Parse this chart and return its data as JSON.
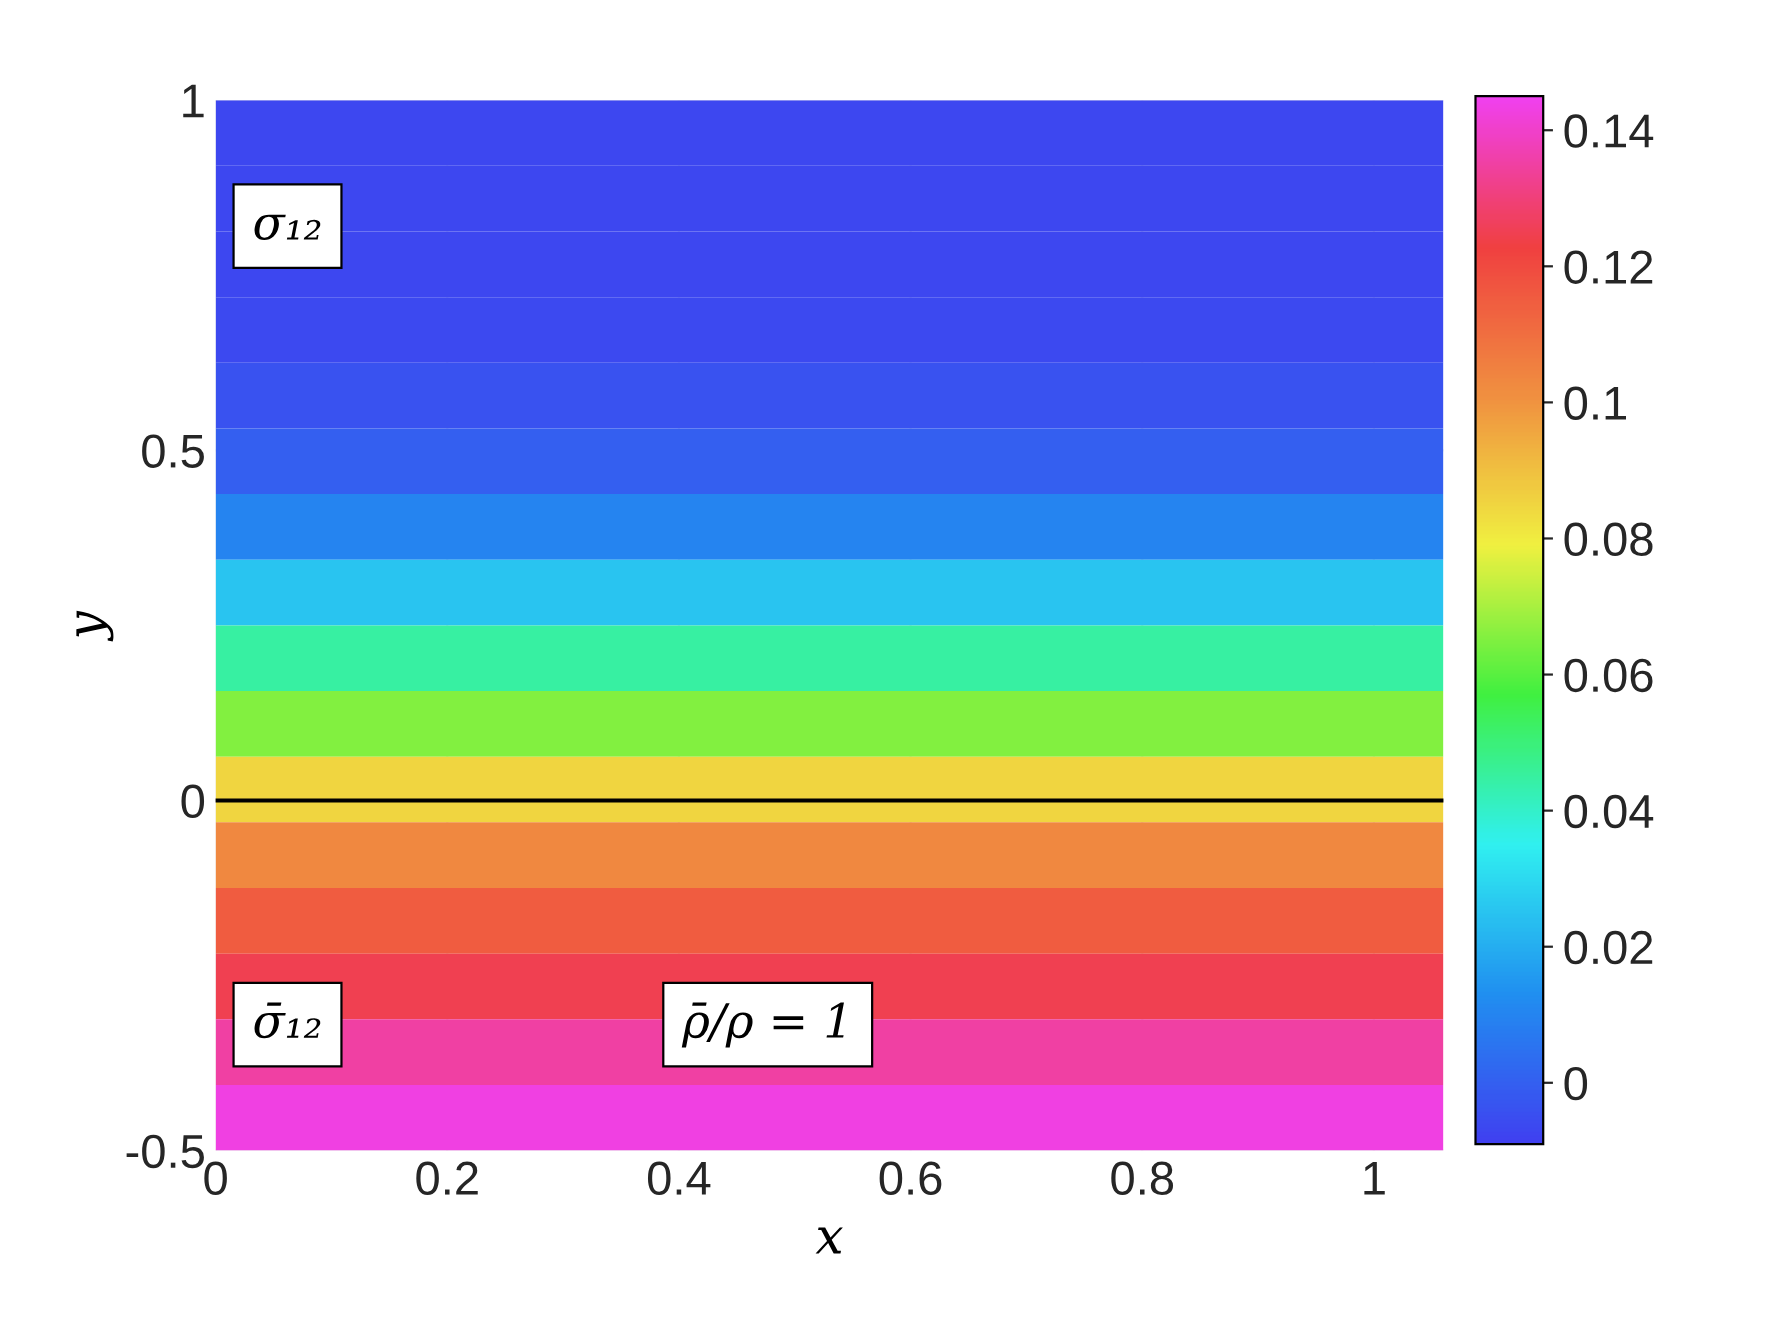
{
  "chart_data": {
    "type": "heatmap",
    "xlabel": "x",
    "ylabel": "y",
    "cells": [
      [
        -0.007
      ],
      [
        -0.007
      ],
      [
        -0.007
      ],
      [
        -0.006
      ],
      [
        -0.004
      ],
      [
        0.0
      ],
      [
        0.01
      ],
      [
        0.025
      ],
      [
        0.045
      ],
      [
        0.065
      ],
      [
        0.085
      ],
      [
        0.103
      ],
      [
        0.115
      ],
      [
        0.125
      ],
      [
        0.135
      ],
      [
        0.143
      ]
    ],
    "xlim": [
      0,
      1.06
    ],
    "ylim": [
      -0.5,
      1
    ],
    "xticks": [
      0,
      0.2,
      0.4,
      0.6,
      0.8,
      1
    ],
    "yticks": [
      {
        "value": -0.5,
        "label": "-0.5"
      },
      0,
      0.5,
      1
    ],
    "clim": [
      -0.009,
      0.145
    ],
    "cticks": [
      0,
      0.02,
      0.04,
      0.06,
      0.08,
      0.1,
      0.12,
      0.14
    ],
    "ref_lines": [
      {
        "axis": "y",
        "value": 0,
        "label": null,
        "color": "#000000"
      }
    ],
    "annotations": [
      "σ₁₂",
      "σ̄₁₂",
      "ρ̄/ρ = 1"
    ],
    "grid": true
  }
}
